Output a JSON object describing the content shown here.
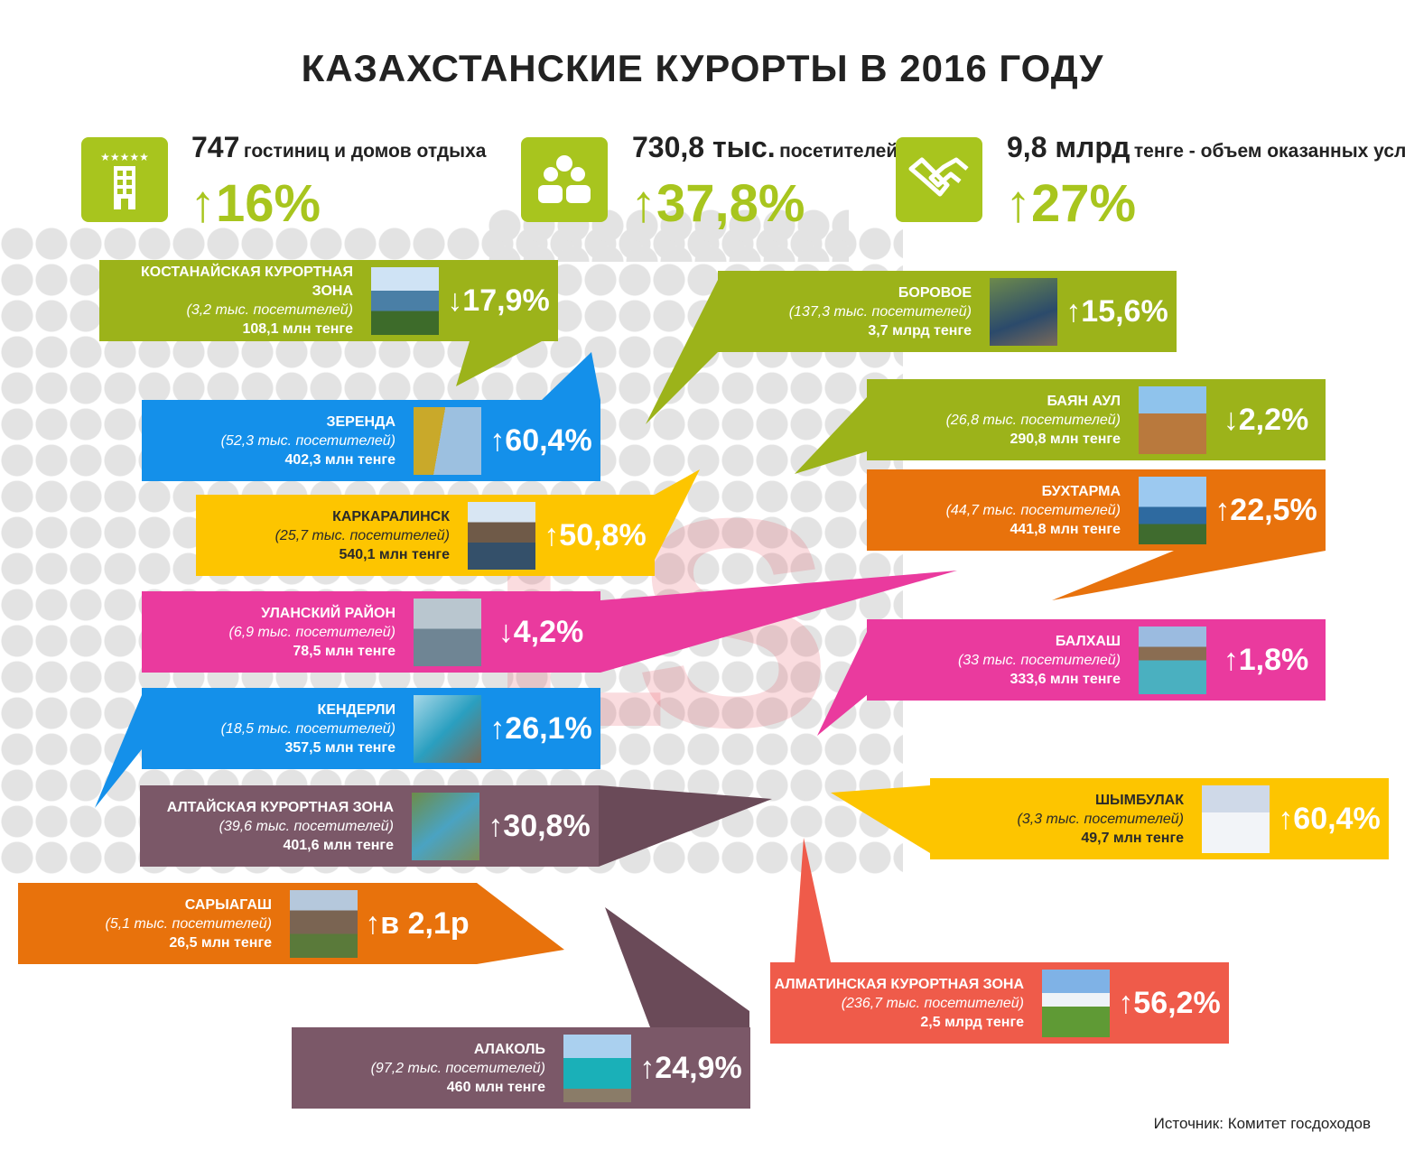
{
  "title": "КАЗАХСТАНСКИЕ КУРОРТЫ В 2016 ГОДУ",
  "stats": [
    {
      "icon": "hotel-icon",
      "value": "747",
      "label": "гостиниц и домов отдыха",
      "change": "↑16%"
    },
    {
      "icon": "people-icon",
      "value": "730,8 тыс.",
      "label": "посетителей",
      "change": "↑37,8%"
    },
    {
      "icon": "handshake-icon",
      "value": "9,8 млрд",
      "label": "тенге - объем оказанных услуг",
      "change": "↑27%"
    }
  ],
  "resorts": [
    {
      "name": "КОСТАНАЙСКАЯ КУРОРТНАЯ ЗОНА",
      "visitors": "(3,2 тыс. посетителей)",
      "revenue": "108,1 млн тенге",
      "change": "↓17,9%",
      "color": "#9cb31a"
    },
    {
      "name": "БОРОВОЕ",
      "visitors": "(137,3 тыс. посетителей)",
      "revenue": "3,7 млрд тенге",
      "change": "↑15,6%",
      "color": "#9cb31a"
    },
    {
      "name": "ЗЕРЕНДА",
      "visitors": "(52,3 тыс. посетителей)",
      "revenue": "402,3 млн тенге",
      "change": "↑60,4%",
      "color": "#1490ea"
    },
    {
      "name": "БАЯН АУЛ",
      "visitors": "(26,8 тыс. посетителей)",
      "revenue": "290,8 млн тенге",
      "change": "↓2,2%",
      "color": "#9cb31a"
    },
    {
      "name": "КАРКАРАЛИНСК",
      "visitors": "(25,7 тыс. посетителей)",
      "revenue": "540,1 млн тенге",
      "change": "↑50,8%",
      "color": "#fdc500"
    },
    {
      "name": "БУХТАРМА",
      "visitors": "(44,7 тыс. посетителей)",
      "revenue": "441,8 млн тенге",
      "change": "↑22,5%",
      "color": "#e8720c"
    },
    {
      "name": "УЛАНСКИЙ РАЙОН",
      "visitors": "(6,9 тыс. посетителей)",
      "revenue": "78,5 млн тенге",
      "change": "↓4,2%",
      "color": "#ea3a9e"
    },
    {
      "name": "БАЛХАШ",
      "visitors": "(33 тыс. посетителей)",
      "revenue": "333,6 млн тенге",
      "change": "↑1,8%",
      "color": "#ea3a9e"
    },
    {
      "name": "КЕНДЕРЛИ",
      "visitors": "(18,5 тыс. посетителей)",
      "revenue": "357,5 млн тенге",
      "change": "↑26,1%",
      "color": "#1490ea"
    },
    {
      "name": "ШЫМБУЛАК",
      "visitors": "(3,3 тыс. посетителей)",
      "revenue": "49,7 млн тенге",
      "change": "↑60,4%",
      "color": "#fdc500"
    },
    {
      "name": "АЛТАЙСКАЯ КУРОРТНАЯ ЗОНА",
      "visitors": "(39,6 тыс. посетителей)",
      "revenue": "401,6 млн тенге",
      "change": "↑30,8%",
      "color": "#7b5868"
    },
    {
      "name": "САРЫАГАШ",
      "visitors": "(5,1 тыс. посетителей)",
      "revenue": "26,5 млн тенге",
      "change": "↑в 2,1р",
      "color": "#e8720c"
    },
    {
      "name": "АЛМАТИНСКАЯ КУРОРТНАЯ ЗОНА",
      "visitors": "(236,7 тыс. посетителей)",
      "revenue": "2,5 млрд тенге",
      "change": "↑56,2%",
      "color": "#ef5b4a"
    },
    {
      "name": "АЛАКОЛЬ",
      "visitors": "(97,2 тыс. посетителей)",
      "revenue": "460 млн тенге",
      "change": "↑24,9%",
      "color": "#7b5868"
    }
  ],
  "source": "Источник: Комитет госдоходов"
}
